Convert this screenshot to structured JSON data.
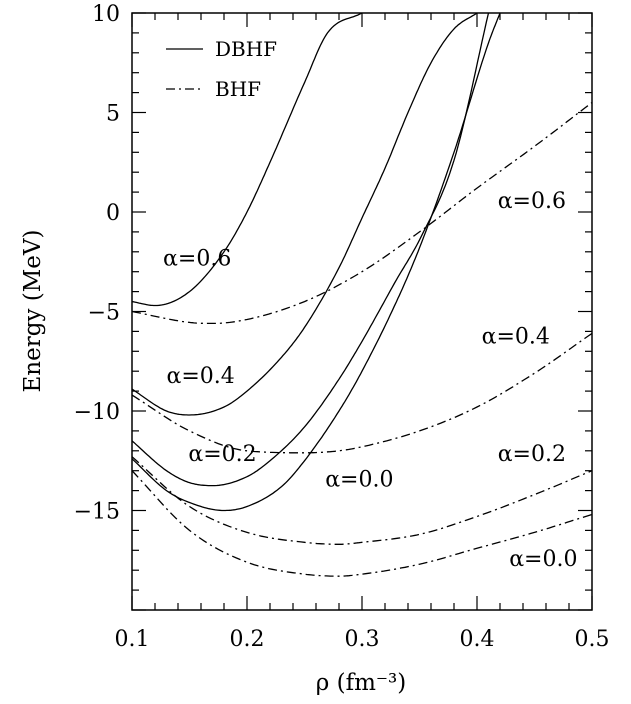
{
  "chart_data": {
    "type": "line",
    "title": "",
    "xlabel": "ρ (fm⁻³)",
    "ylabel": "Energy (MeV)",
    "xlim": [
      0.1,
      0.5
    ],
    "ylim": [
      -20,
      10
    ],
    "xticks": [
      0.1,
      0.2,
      0.3,
      0.4,
      0.5
    ],
    "yticks": [
      10,
      5,
      0,
      -5,
      -10,
      -15
    ],
    "xtick_labels": [
      "0.1",
      "0.2",
      "0.3",
      "0.4",
      "0.5"
    ],
    "ytick_labels": [
      "10",
      "5",
      "0",
      "−5",
      "−10",
      "−15"
    ],
    "grid": false,
    "legend": {
      "position": "top-left",
      "entries": [
        {
          "label": "DBHF",
          "style": "solid"
        },
        {
          "label": "BHF",
          "style": "dash-dot"
        }
      ]
    },
    "series": [
      {
        "group": "DBHF",
        "style": "solid",
        "alpha": "0.6",
        "x": [
          0.1,
          0.12,
          0.15,
          0.18,
          0.2,
          0.22,
          0.25,
          0.27,
          0.3
        ],
        "y": [
          -4.5,
          -4.7,
          -4.0,
          -2.0,
          0.0,
          2.5,
          6.5,
          9.0,
          10.0
        ]
      },
      {
        "group": "DBHF",
        "style": "solid",
        "alpha": "0.4",
        "x": [
          0.1,
          0.13,
          0.15,
          0.18,
          0.2,
          0.23,
          0.25,
          0.28,
          0.3,
          0.32,
          0.34,
          0.36,
          0.38,
          0.4
        ],
        "y": [
          -8.9,
          -10.0,
          -10.2,
          -9.8,
          -9.0,
          -7.3,
          -5.8,
          -2.8,
          -0.3,
          2.2,
          5.0,
          7.5,
          9.2,
          10.0
        ]
      },
      {
        "group": "DBHF",
        "style": "solid",
        "alpha": "0.2",
        "x": [
          0.1,
          0.13,
          0.15,
          0.17,
          0.2,
          0.22,
          0.25,
          0.28,
          0.3,
          0.33,
          0.35,
          0.38,
          0.41
        ],
        "y": [
          -11.5,
          -13.0,
          -13.6,
          -13.75,
          -13.3,
          -12.5,
          -10.8,
          -8.4,
          -6.5,
          -3.4,
          -1.4,
          2.6,
          10.0
        ]
      },
      {
        "group": "DBHF",
        "style": "solid",
        "alpha": "0.0",
        "x": [
          0.1,
          0.13,
          0.15,
          0.18,
          0.2,
          0.23,
          0.25,
          0.28,
          0.3,
          0.33,
          0.35,
          0.38,
          0.41,
          0.42
        ],
        "y": [
          -12.4,
          -14.0,
          -14.6,
          -15.0,
          -14.8,
          -13.8,
          -12.5,
          -10.0,
          -8.0,
          -4.5,
          -1.8,
          3.0,
          8.5,
          10.0
        ]
      },
      {
        "group": "BHF",
        "style": "dash-dot",
        "alpha": "0.6",
        "x": [
          0.1,
          0.15,
          0.17,
          0.2,
          0.25,
          0.3,
          0.35,
          0.4,
          0.45,
          0.5
        ],
        "y": [
          -5.0,
          -5.55,
          -5.6,
          -5.4,
          -4.5,
          -3.0,
          -1.0,
          1.2,
          3.3,
          5.5
        ]
      },
      {
        "group": "BHF",
        "style": "dash-dot",
        "alpha": "0.4",
        "x": [
          0.1,
          0.15,
          0.2,
          0.25,
          0.28,
          0.3,
          0.35,
          0.4,
          0.45,
          0.5
        ],
        "y": [
          -9.2,
          -11.0,
          -12.0,
          -12.1,
          -12.0,
          -11.8,
          -11.0,
          -9.8,
          -8.1,
          -6.1
        ]
      },
      {
        "group": "BHF",
        "style": "dash-dot",
        "alpha": "0.2",
        "x": [
          0.1,
          0.15,
          0.2,
          0.25,
          0.28,
          0.3,
          0.35,
          0.4,
          0.45,
          0.5
        ],
        "y": [
          -12.3,
          -14.8,
          -16.1,
          -16.6,
          -16.7,
          -16.6,
          -16.2,
          -15.3,
          -14.2,
          -13.0
        ]
      },
      {
        "group": "BHF",
        "style": "dash-dot",
        "alpha": "0.0",
        "x": [
          0.1,
          0.15,
          0.2,
          0.25,
          0.28,
          0.3,
          0.35,
          0.4,
          0.45,
          0.5
        ],
        "y": [
          -13.0,
          -16.0,
          -17.6,
          -18.2,
          -18.3,
          -18.2,
          -17.7,
          -16.9,
          -16.1,
          -15.2
        ]
      }
    ],
    "annotations": [
      {
        "text": "α=0.6",
        "x": 0.127,
        "y": -2.7
      },
      {
        "text": "α=0.4",
        "x": 0.13,
        "y": -8.6
      },
      {
        "text": "α=0.2",
        "x": 0.149,
        "y": -12.5
      },
      {
        "text": "α=0.0",
        "x": 0.268,
        "y": -13.8
      },
      {
        "text": "α=0.6",
        "x": 0.418,
        "y": 0.2
      },
      {
        "text": "α=0.4",
        "x": 0.404,
        "y": -6.6
      },
      {
        "text": "α=0.2",
        "x": 0.418,
        "y": -12.5
      },
      {
        "text": "α=0.0",
        "x": 0.428,
        "y": -17.8
      }
    ]
  }
}
